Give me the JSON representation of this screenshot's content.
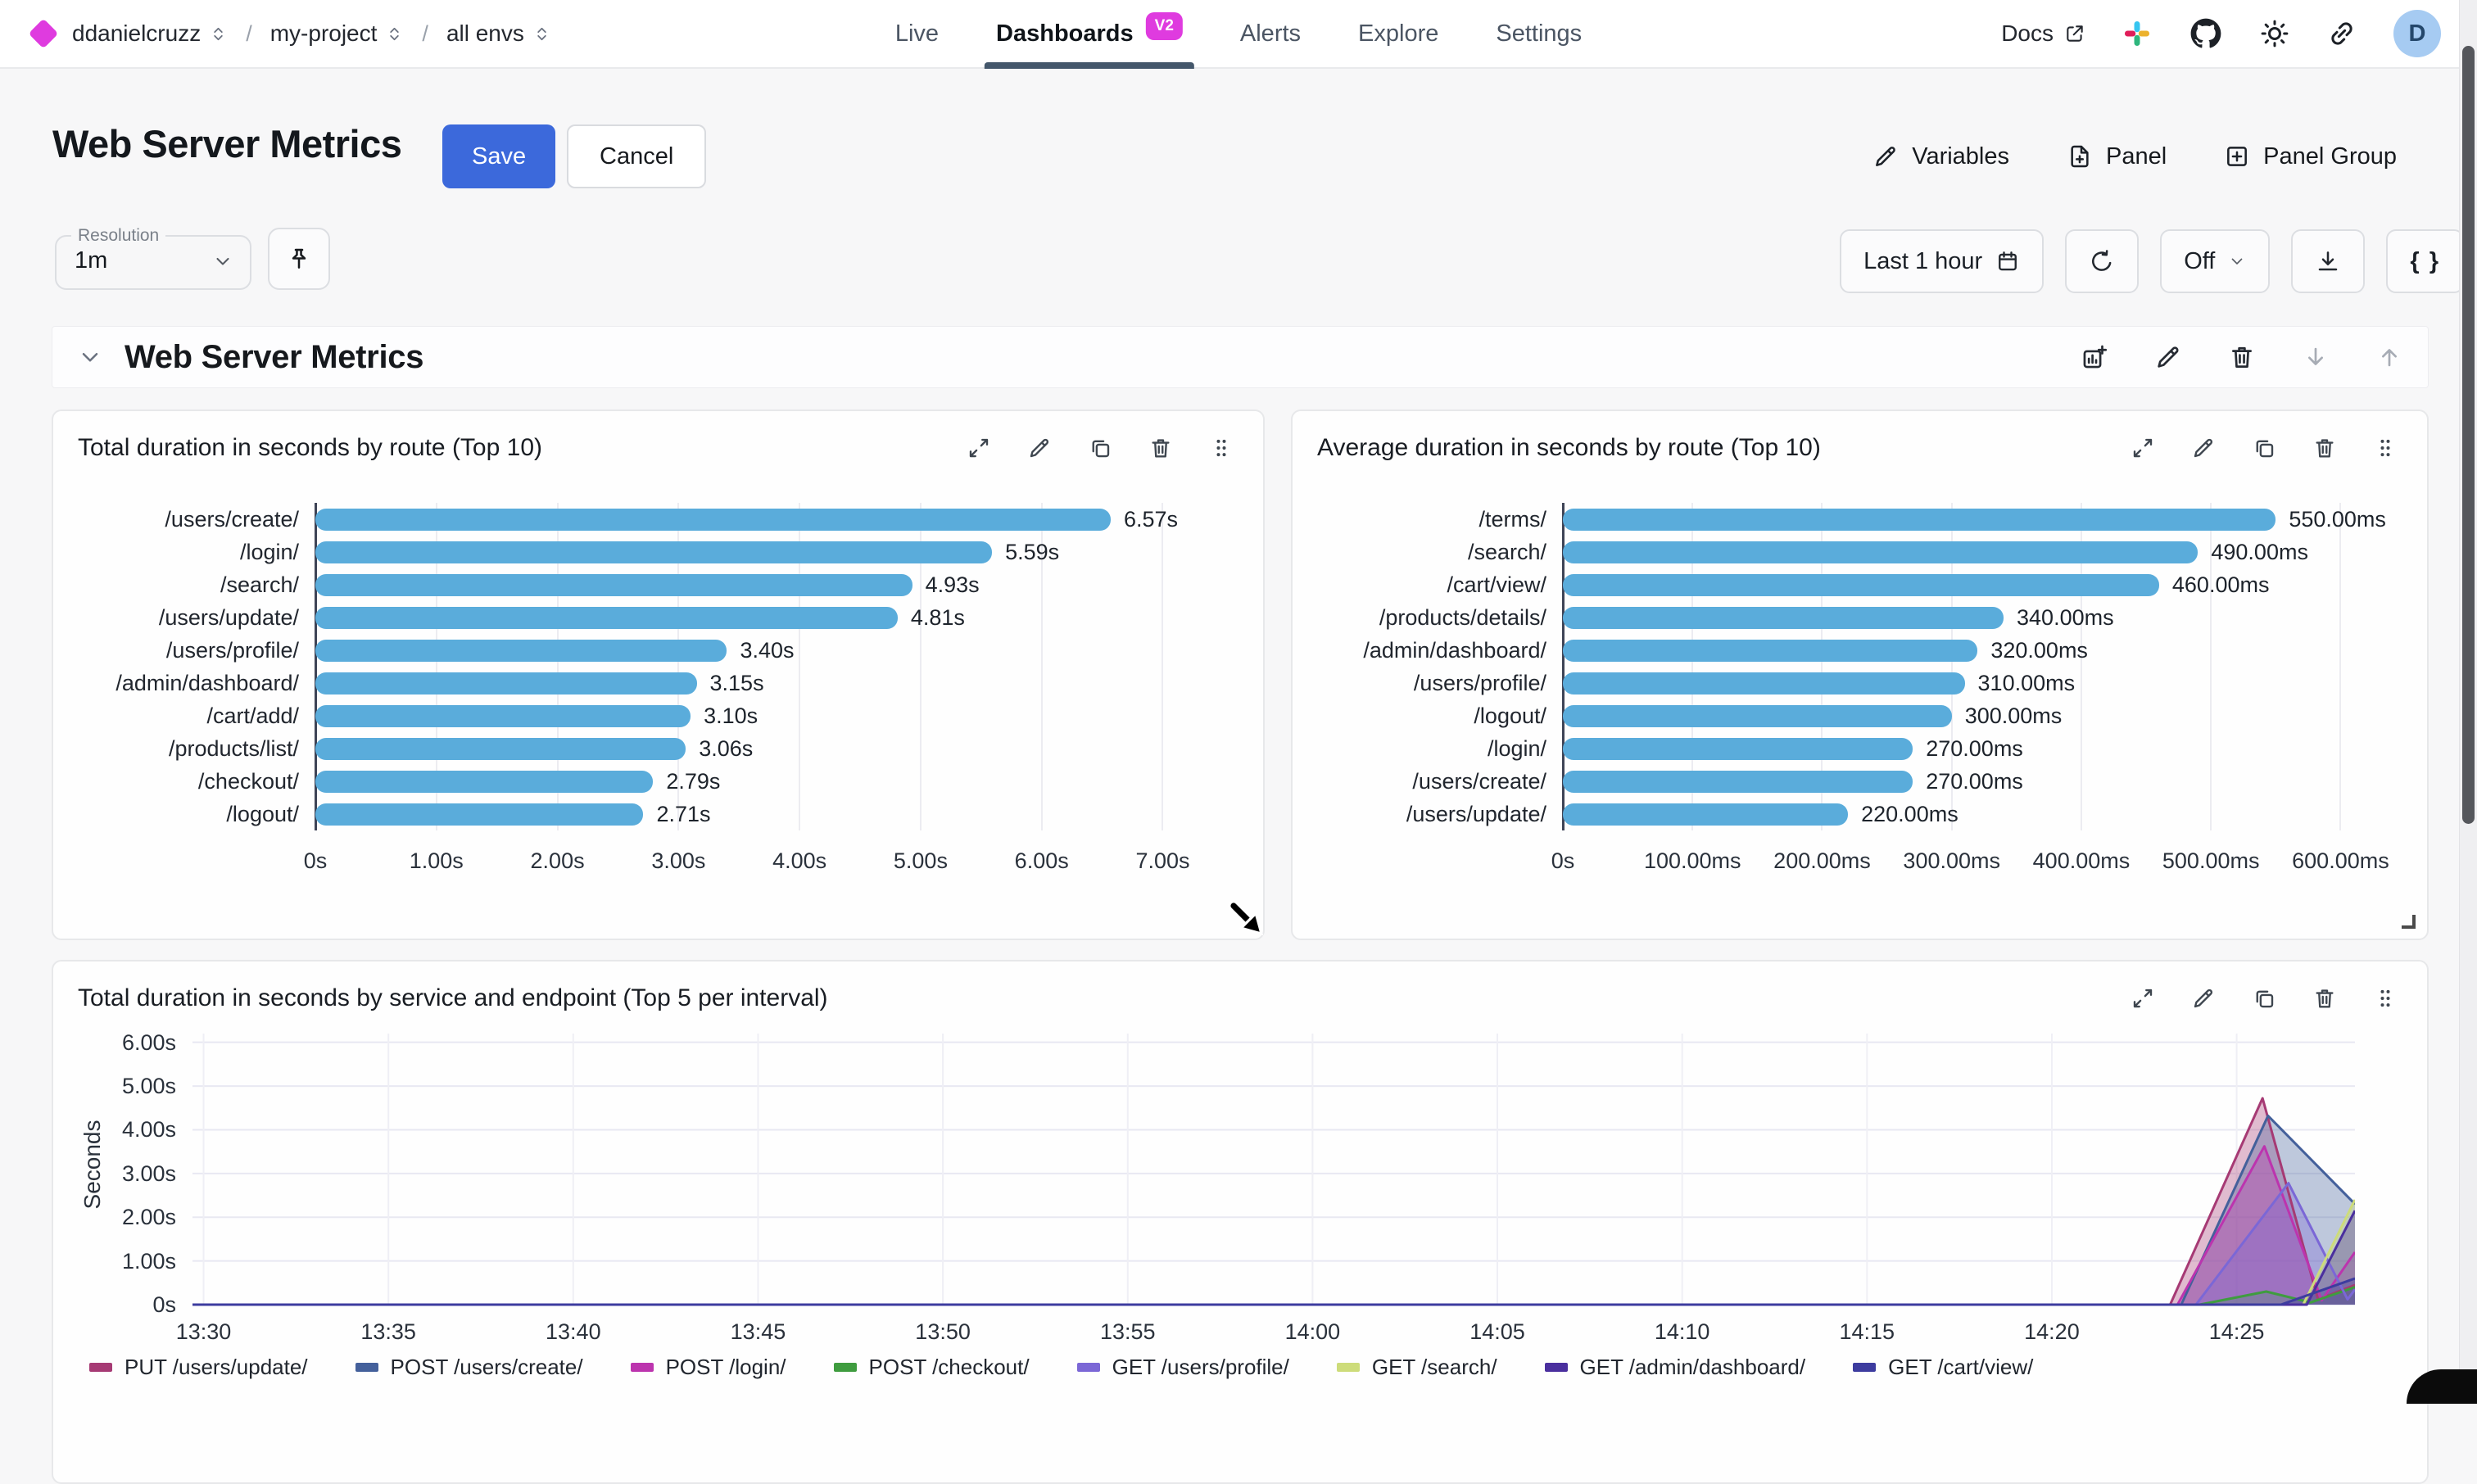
{
  "nav": {
    "breadcrumb": [
      {
        "label": "ddanielcruzz"
      },
      {
        "label": "my-project"
      },
      {
        "label": "all envs"
      }
    ],
    "tabs": [
      {
        "label": "Live",
        "active": false
      },
      {
        "label": "Dashboards",
        "active": true,
        "badge": "V2"
      },
      {
        "label": "Alerts",
        "active": false
      },
      {
        "label": "Explore",
        "active": false
      },
      {
        "label": "Settings",
        "active": false
      }
    ],
    "docs_label": "Docs",
    "icon_buttons": [
      "slack-icon",
      "github-icon",
      "sun-icon",
      "link-icon"
    ],
    "avatar_initial": "D",
    "brand_color": "#DF3BDF"
  },
  "header": {
    "title": "Web Server Metrics",
    "save_label": "Save",
    "cancel_label": "Cancel",
    "variables_label": "Variables",
    "panel_label": "Panel",
    "panel_group_label": "Panel Group",
    "save_color": "#3C69DB"
  },
  "toolbar": {
    "resolution_label": "Resolution",
    "resolution_value": "1m",
    "time_range": "Last 1 hour",
    "refresh_off": "Off",
    "braces": "{ }"
  },
  "section": {
    "title": "Web Server Metrics",
    "actions": [
      {
        "icon": "add-panel-icon",
        "muted": false
      },
      {
        "icon": "edit-icon",
        "muted": false
      },
      {
        "icon": "delete-icon",
        "muted": false
      },
      {
        "icon": "move-down-icon",
        "muted": true
      },
      {
        "icon": "move-up-icon",
        "muted": true
      }
    ]
  },
  "panels": {
    "actions": [
      "expand-icon",
      "edit-icon",
      "copy-icon",
      "delete-icon",
      "drag-handle-icon"
    ]
  },
  "chart_data": [
    {
      "type": "bar",
      "orientation": "horizontal",
      "title": "Total duration in seconds by route (Top 10)",
      "categories": [
        "/users/create/",
        "/login/",
        "/search/",
        "/users/update/",
        "/users/profile/",
        "/admin/dashboard/",
        "/cart/add/",
        "/products/list/",
        "/checkout/",
        "/logout/"
      ],
      "values": [
        6.57,
        5.59,
        4.93,
        4.81,
        3.4,
        3.15,
        3.1,
        3.06,
        2.79,
        2.71
      ],
      "value_labels": [
        "6.57s",
        "5.59s",
        "4.93s",
        "4.81s",
        "3.40s",
        "3.15s",
        "3.10s",
        "3.06s",
        "2.79s",
        "2.71s"
      ],
      "x_tick_values": [
        0,
        1,
        2,
        3,
        4,
        5,
        6,
        7
      ],
      "x_tick_labels": [
        "0s",
        "1.00s",
        "2.00s",
        "3.00s",
        "4.00s",
        "5.00s",
        "6.00s",
        "7.00s"
      ],
      "xmax": 7.45,
      "bar_color": "#5AACDB",
      "label_col_width": 300
    },
    {
      "type": "bar",
      "orientation": "horizontal",
      "title": "Average duration in seconds by route (Top 10)",
      "categories": [
        "/terms/",
        "/search/",
        "/cart/view/",
        "/products/details/",
        "/admin/dashboard/",
        "/users/profile/",
        "/logout/",
        "/login/",
        "/users/create/",
        "/users/update/"
      ],
      "values": [
        550,
        490,
        460,
        340,
        320,
        310,
        300,
        270,
        270,
        220
      ],
      "value_labels": [
        "550.00ms",
        "490.00ms",
        "460.00ms",
        "340.00ms",
        "320.00ms",
        "310.00ms",
        "300.00ms",
        "270.00ms",
        "270.00ms",
        "220.00ms"
      ],
      "x_tick_values": [
        0,
        100,
        200,
        300,
        400,
        500,
        600
      ],
      "x_tick_labels": [
        "0s",
        "100.00ms",
        "200.00ms",
        "300.00ms",
        "400.00ms",
        "500.00ms",
        "600.00ms"
      ],
      "xmax": 625,
      "bar_color": "#5AACDB",
      "label_col_width": 310
    },
    {
      "type": "area",
      "title": "Total duration in seconds by service and endpoint (Top 5 per interval)",
      "ylabel": "Seconds",
      "y_tick_values": [
        0,
        1,
        2,
        3,
        4,
        5,
        6
      ],
      "y_tick_labels": [
        "0s",
        "1.00s",
        "2.00s",
        "3.00s",
        "4.00s",
        "5.00s",
        "6.00s"
      ],
      "ylim": [
        0,
        6.2
      ],
      "x_tick_minutes": [
        0,
        5,
        10,
        15,
        20,
        25,
        30,
        35,
        40,
        45,
        50,
        55
      ],
      "x_tick_labels": [
        "13:30",
        "13:35",
        "13:40",
        "13:45",
        "13:50",
        "13:55",
        "14:00",
        "14:05",
        "14:10",
        "14:15",
        "14:20",
        "14:25"
      ],
      "x_domain_minutes": [
        -0.3,
        58.2
      ],
      "grid": true,
      "legend_position": "bottom",
      "series": [
        {
          "name": "PUT /users/update/",
          "color": "#A63A74",
          "points": [
            [
              -0.3,
              0
            ],
            [
              53.2,
              0
            ],
            [
              55.7,
              4.72
            ],
            [
              57.2,
              0.12
            ],
            [
              58.2,
              0.45
            ]
          ]
        },
        {
          "name": "POST /users/create/",
          "color": "#44609B",
          "points": [
            [
              -0.3,
              0
            ],
            [
              53.5,
              0
            ],
            [
              55.85,
              4.32
            ],
            [
              58.2,
              2.3
            ]
          ]
        },
        {
          "name": "POST /login/",
          "color": "#BC34AE",
          "points": [
            [
              -0.3,
              0
            ],
            [
              53.4,
              0
            ],
            [
              55.75,
              3.62
            ],
            [
              57.3,
              0.1
            ],
            [
              58.2,
              1.2
            ]
          ]
        },
        {
          "name": "POST /checkout/",
          "color": "#3F9C3F",
          "points": [
            [
              -0.3,
              0
            ],
            [
              54,
              0
            ],
            [
              55.8,
              0.3
            ],
            [
              57,
              0.05
            ],
            [
              58.2,
              0.4
            ]
          ]
        },
        {
          "name": "GET /users/profile/",
          "color": "#7B67D6",
          "points": [
            [
              -0.3,
              0
            ],
            [
              53.9,
              0
            ],
            [
              56.4,
              2.78
            ],
            [
              58,
              0.12
            ],
            [
              58.2,
              0.35
            ]
          ]
        },
        {
          "name": "GET /search/",
          "color": "#CDDC7A",
          "points": [
            [
              -0.3,
              0
            ],
            [
              56.8,
              0
            ],
            [
              58.2,
              2.4
            ]
          ]
        },
        {
          "name": "GET /admin/dashboard/",
          "color": "#4A2F9E",
          "points": [
            [
              -0.3,
              0
            ],
            [
              56.9,
              0
            ],
            [
              58.2,
              2.15
            ]
          ]
        },
        {
          "name": "GET /cart/view/",
          "color": "#3D3C9F",
          "points": [
            [
              -0.3,
              0
            ],
            [
              56.2,
              0
            ],
            [
              58.2,
              0.6
            ]
          ]
        }
      ]
    }
  ]
}
